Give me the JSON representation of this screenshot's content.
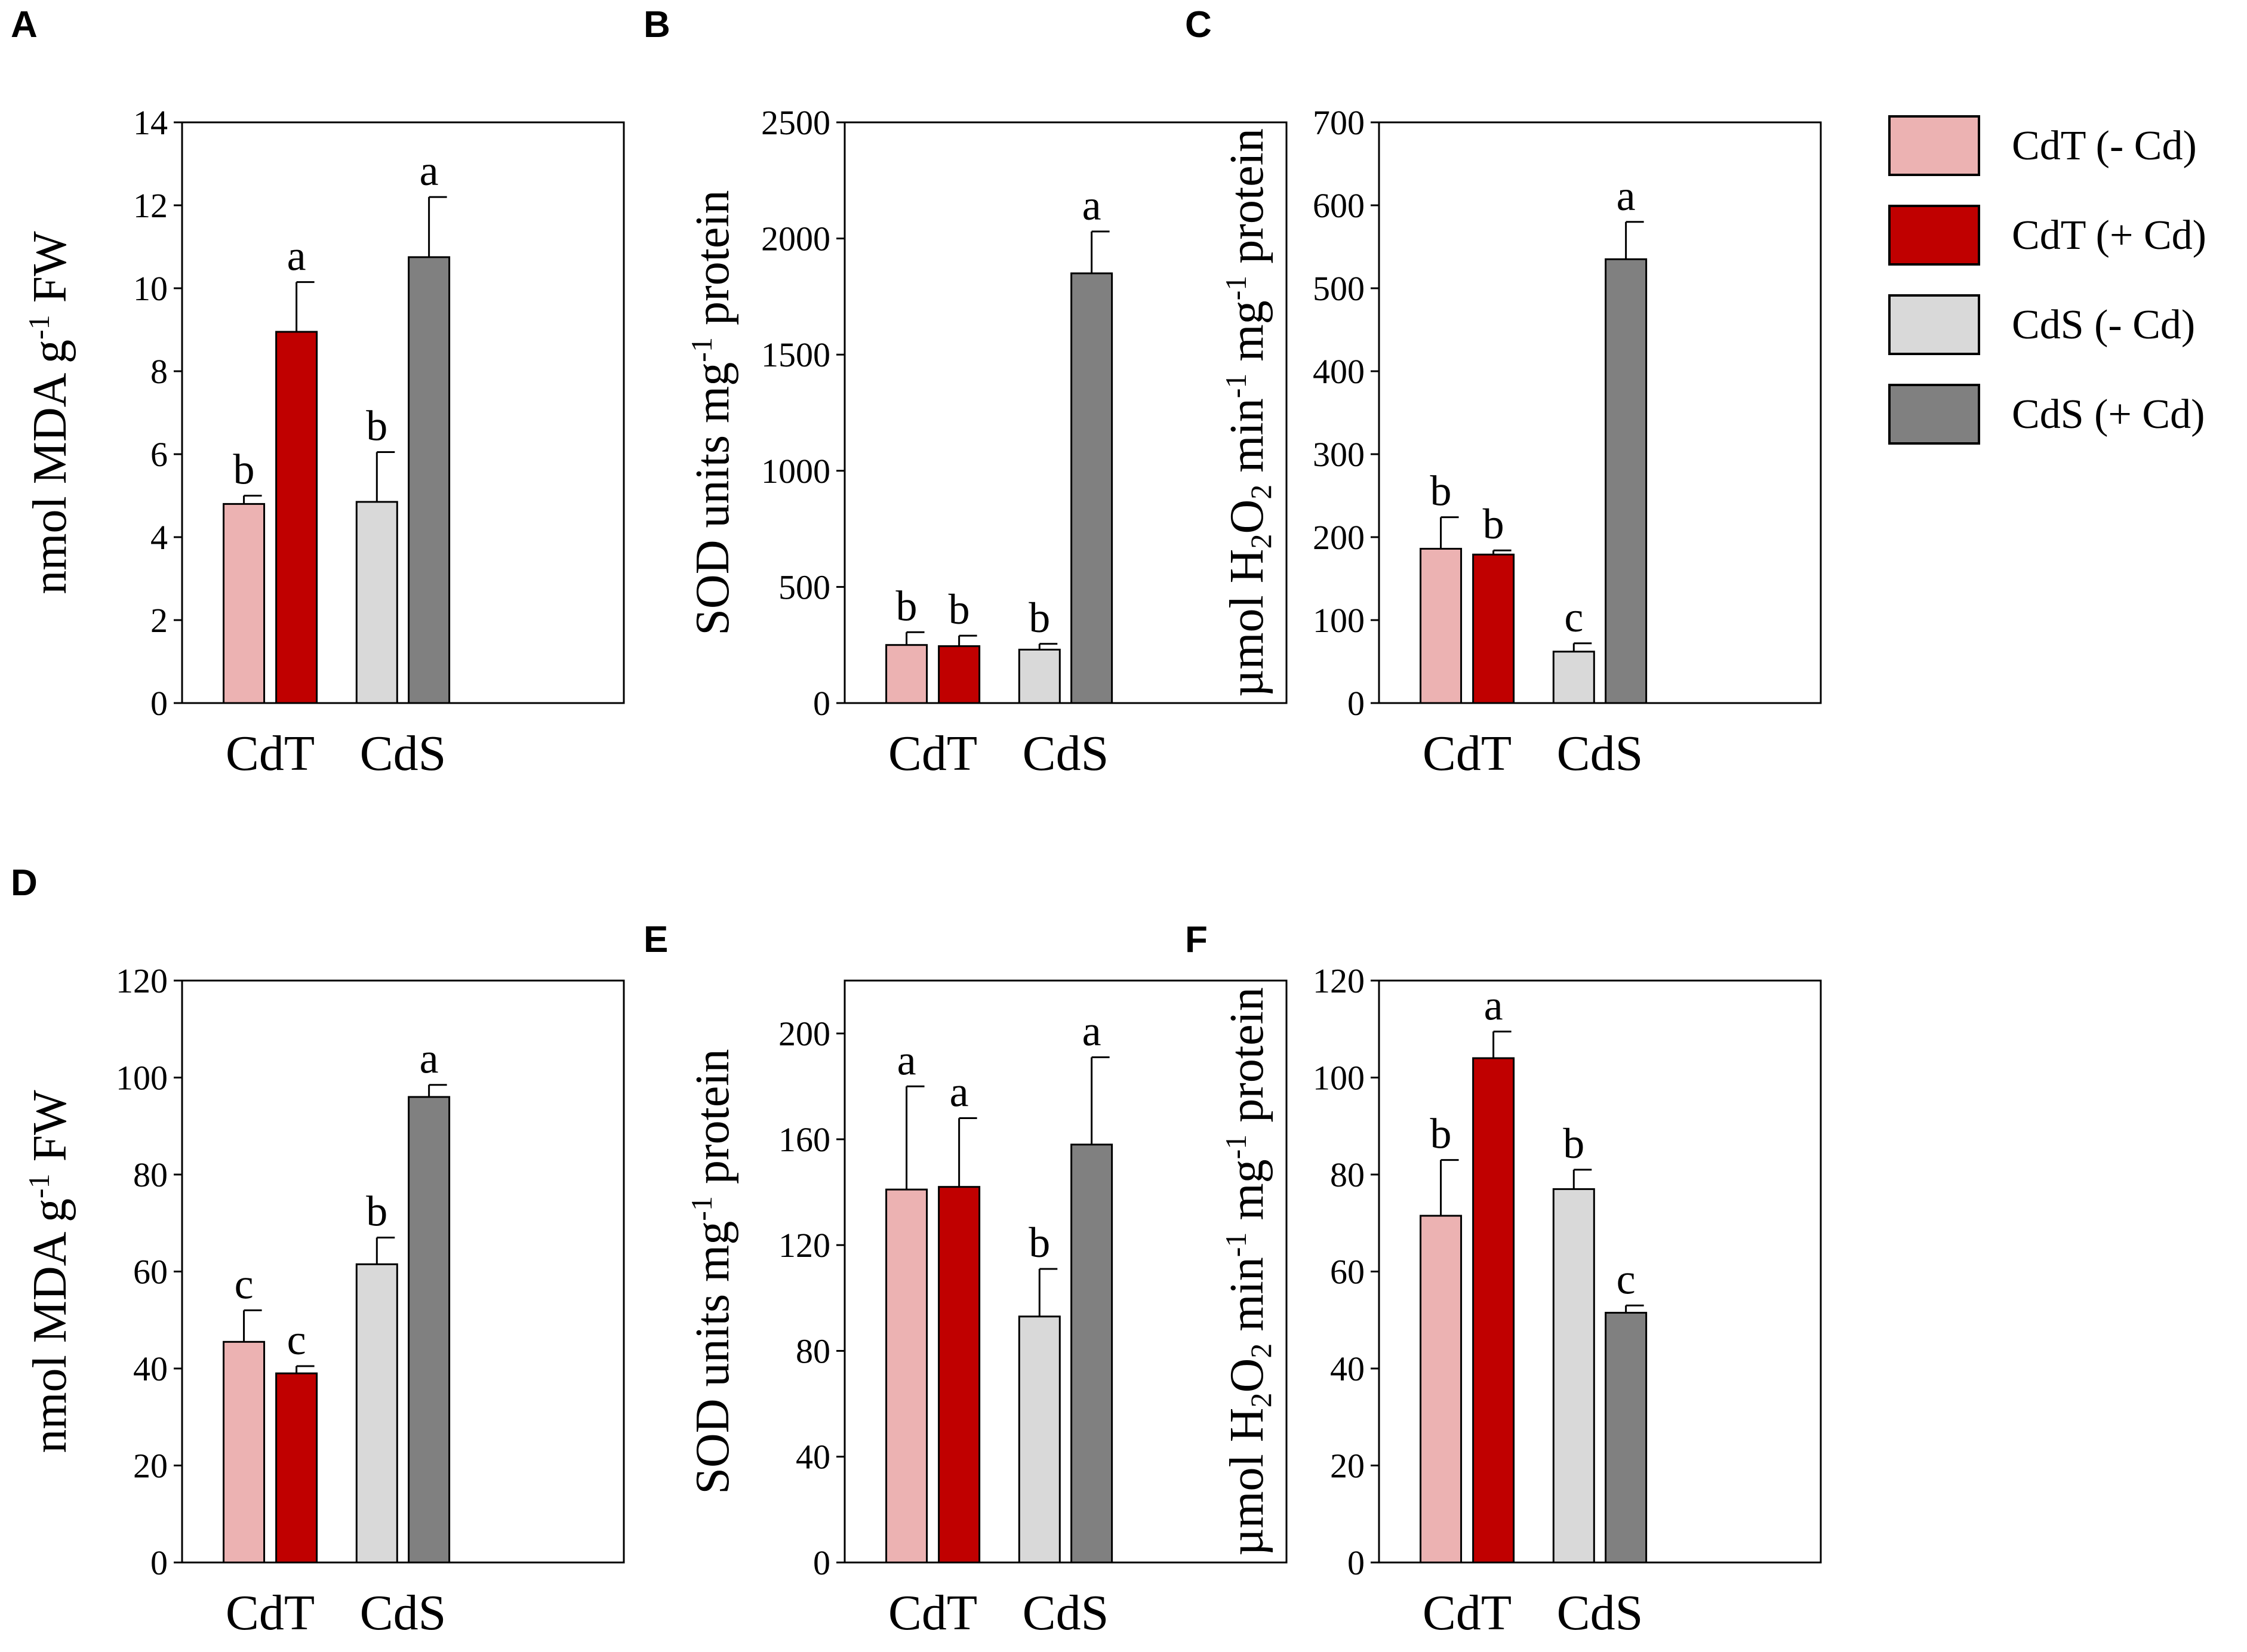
{
  "legend": [
    {
      "label": "CdT (- Cd)",
      "color": "#ecb2b2"
    },
    {
      "label": "CdT (+ Cd)",
      "color": "#c00000"
    },
    {
      "label": "CdS (- Cd)",
      "color": "#d9d9d9"
    },
    {
      "label": "CdS (+ Cd)",
      "color": "#808080"
    }
  ],
  "chart_data": [
    {
      "panel": "A",
      "type": "bar",
      "ylabel": {
        "pre": "nmol MDA g",
        "sup": "-1",
        "post": " FW"
      },
      "categories": [
        "CdT",
        "CdS"
      ],
      "yticks": [
        0,
        2,
        4,
        6,
        8,
        10,
        12,
        14
      ],
      "ylim": [
        0,
        14
      ],
      "bars": [
        {
          "value": 4.8,
          "error": 0.2,
          "letter": "b"
        },
        {
          "value": 8.95,
          "error": 1.2,
          "letter": "a"
        },
        {
          "value": 4.85,
          "error": 1.2,
          "letter": "b"
        },
        {
          "value": 10.75,
          "error": 1.45,
          "letter": "a"
        }
      ]
    },
    {
      "panel": "B",
      "type": "bar",
      "ylabel": {
        "pre": "SOD units mg",
        "sup": "-1",
        "post": " protein"
      },
      "categories": [
        "CdT",
        "CdS"
      ],
      "yticks": [
        0,
        500,
        1000,
        1500,
        2000,
        2500
      ],
      "ylim": [
        0,
        2500
      ],
      "bars": [
        {
          "value": 250,
          "error": 55,
          "letter": "b"
        },
        {
          "value": 245,
          "error": 45,
          "letter": "b"
        },
        {
          "value": 230,
          "error": 25,
          "letter": "b"
        },
        {
          "value": 1850,
          "error": 180,
          "letter": "a"
        }
      ]
    },
    {
      "panel": "C",
      "type": "bar",
      "ylabel": {
        "pre": "µmol H",
        "sub1": "2",
        "mid": "O",
        "sub2": "2",
        "mid2": " min",
        "sup1": "-1",
        "mid3": " mg",
        "sup2": "-1",
        "post": " protein"
      },
      "categories": [
        "CdT",
        "CdS"
      ],
      "yticks": [
        0,
        100,
        200,
        300,
        400,
        500,
        600,
        700
      ],
      "ylim": [
        0,
        700
      ],
      "bars": [
        {
          "value": 186,
          "error": 38,
          "letter": "b"
        },
        {
          "value": 179,
          "error": 5,
          "letter": "b"
        },
        {
          "value": 62,
          "error": 10,
          "letter": "c"
        },
        {
          "value": 535,
          "error": 45,
          "letter": "a"
        }
      ]
    },
    {
      "panel": "D",
      "type": "bar",
      "ylabel": {
        "pre": "nmol MDA g",
        "sup": "-1",
        "post": " FW"
      },
      "categories": [
        "CdT",
        "CdS"
      ],
      "yticks": [
        0,
        20,
        40,
        60,
        80,
        100,
        120
      ],
      "ylim": [
        0,
        120
      ],
      "bars": [
        {
          "value": 45.5,
          "error": 6.5,
          "letter": "c"
        },
        {
          "value": 39,
          "error": 1.5,
          "letter": "c"
        },
        {
          "value": 61.5,
          "error": 5.5,
          "letter": "b"
        },
        {
          "value": 96,
          "error": 2.5,
          "letter": "a"
        }
      ]
    },
    {
      "panel": "E",
      "type": "bar",
      "ylabel": {
        "pre": "SOD units mg",
        "sup": "-1",
        "post": " protein"
      },
      "categories": [
        "CdT",
        "CdS"
      ],
      "yticks": [
        0,
        40,
        80,
        120,
        160,
        200
      ],
      "ylim": [
        0,
        220
      ],
      "bars": [
        {
          "value": 141,
          "error": 39,
          "letter": "a"
        },
        {
          "value": 142,
          "error": 26,
          "letter": "a"
        },
        {
          "value": 93,
          "error": 18,
          "letter": "b"
        },
        {
          "value": 158,
          "error": 33,
          "letter": "a"
        }
      ]
    },
    {
      "panel": "F",
      "type": "bar",
      "ylabel": {
        "pre": "µmol H",
        "sub1": "2",
        "mid": "O",
        "sub2": "2",
        "mid2": " min",
        "sup1": "-1",
        "mid3": " mg",
        "sup2": "-1",
        "post": " protein"
      },
      "categories": [
        "CdT",
        "CdS"
      ],
      "yticks": [
        0,
        20,
        40,
        60,
        80,
        100,
        120
      ],
      "ylim": [
        0,
        120
      ],
      "bars": [
        {
          "value": 71.5,
          "error": 11.5,
          "letter": "b"
        },
        {
          "value": 104,
          "error": 5.5,
          "letter": "a"
        },
        {
          "value": 77,
          "error": 4,
          "letter": "b"
        },
        {
          "value": 51.5,
          "error": 1.5,
          "letter": "c"
        }
      ]
    }
  ]
}
